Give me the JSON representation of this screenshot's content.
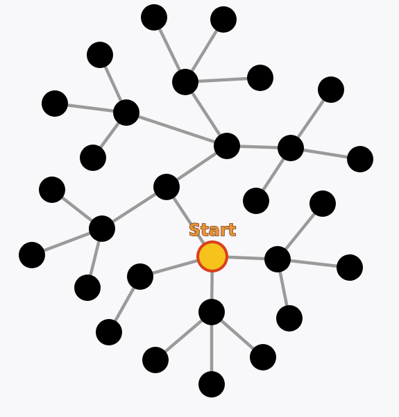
{
  "game": {
    "start_label": "Start",
    "colors": {
      "background": "#f8f7f9",
      "node": "#000000",
      "edge": "#9a9a9a",
      "start_fill": "#f6c21c",
      "start_ring": "#d8401e",
      "label_fill": "#e8923a",
      "label_stroke": "#6b3b12"
    }
  }
}
